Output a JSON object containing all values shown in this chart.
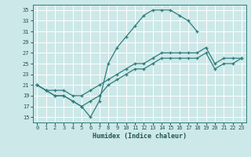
{
  "xlabel": "Humidex (Indice chaleur)",
  "background_color": "#cde8e8",
  "grid_color": "#ffffff",
  "line_color": "#2e7d7d",
  "xlim": [
    -0.5,
    23.5
  ],
  "ylim": [
    14,
    36
  ],
  "yticks": [
    15,
    17,
    19,
    21,
    23,
    25,
    27,
    29,
    31,
    33,
    35
  ],
  "xticks": [
    0,
    1,
    2,
    3,
    4,
    5,
    6,
    7,
    8,
    9,
    10,
    11,
    12,
    13,
    14,
    15,
    16,
    17,
    18,
    19,
    20,
    21,
    22,
    23
  ],
  "curves": [
    {
      "x": [
        0,
        1,
        2,
        3,
        4,
        5,
        6,
        7,
        8,
        9,
        10,
        11,
        12,
        13,
        14,
        15,
        16,
        17,
        18
      ],
      "y": [
        21,
        20,
        19,
        19,
        18,
        17,
        15,
        18,
        25,
        28,
        30,
        32,
        34,
        35,
        35,
        35,
        34,
        33,
        31
      ]
    },
    {
      "x": [
        0,
        1,
        2,
        3,
        4,
        5,
        6,
        7,
        8,
        9,
        10,
        11,
        12,
        13,
        14,
        15,
        16,
        17,
        18,
        19,
        20,
        21,
        22,
        23
      ],
      "y": [
        21,
        20,
        20,
        20,
        19,
        19,
        20,
        21,
        22,
        23,
        24,
        25,
        25,
        26,
        27,
        27,
        27,
        27,
        27,
        28,
        25,
        26,
        26,
        26
      ]
    },
    {
      "x": [
        0,
        1,
        2,
        3,
        4,
        5,
        6,
        7,
        8,
        9,
        10,
        11,
        12,
        13,
        14,
        15,
        16,
        17,
        18,
        19,
        20,
        21,
        22,
        23
      ],
      "y": [
        21,
        20,
        19,
        19,
        18,
        17,
        18,
        19,
        21,
        22,
        23,
        24,
        24,
        25,
        26,
        26,
        26,
        26,
        26,
        27,
        24,
        25,
        25,
        26
      ]
    }
  ]
}
